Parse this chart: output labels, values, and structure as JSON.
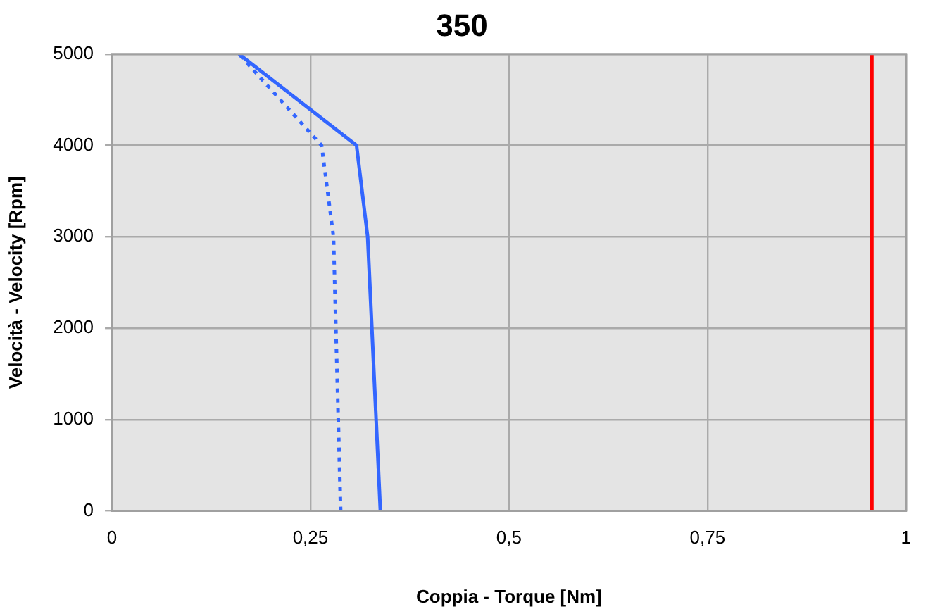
{
  "chart_data": {
    "type": "line",
    "title": "350",
    "xlabel": "Coppia - Torque [Nm]",
    "ylabel": "Velocità - Velocity [Rpm]",
    "series": [
      {
        "color": "#3366ff",
        "line_style": "solid",
        "x": [
          0.338,
          0.322,
          0.308,
          0.16
        ],
        "values": [
          0,
          3000,
          4000,
          5000
        ]
      },
      {
        "color": "#3366ff",
        "line_style": "dotted",
        "x": [
          0.288,
          0.279,
          0.264,
          0.16
        ],
        "values": [
          0,
          3000,
          4000,
          5000
        ]
      }
    ],
    "xlim": [
      0,
      1
    ],
    "xticks": [
      0,
      {
        "value": 0.25,
        "label": "0,25"
      },
      {
        "value": 0.5,
        "label": "0,5"
      },
      {
        "value": 0.75,
        "label": "0,75"
      },
      1
    ],
    "ylim": [
      0,
      5000
    ],
    "yticks": [
      0,
      1000,
      2000,
      3000,
      4000,
      5000
    ],
    "ref_lines": [
      {
        "axis": "x",
        "value": 0.957,
        "color": "#ff0000"
      }
    ],
    "grid": true,
    "legend": false,
    "marker": "none"
  }
}
